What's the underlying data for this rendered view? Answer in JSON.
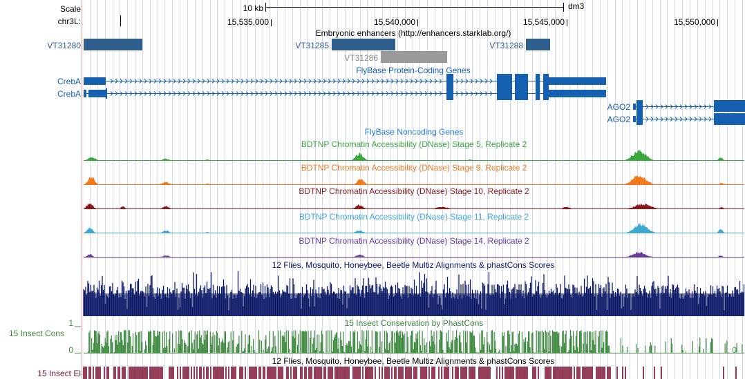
{
  "ruler": {
    "scale_label": "Scale",
    "chrom_label": "chr3L:",
    "scale_text": "10 kb",
    "assembly": "dm3",
    "positions": [
      "15,535,000",
      "15,540,000",
      "15,545,000",
      "15,550,000"
    ]
  },
  "enhancers": {
    "title": "Embryonic enhancers (http://enhancers.starklab.org/)",
    "items": [
      "VT31280",
      "VT31285",
      "VT31286",
      "VT31288"
    ]
  },
  "genes": {
    "title": "FlyBase Protein-Coding Genes",
    "creba_1": "CrebA",
    "creba_2": "CrebA",
    "ago2_1": "AGO2",
    "ago2_2": "AGO2"
  },
  "noncoding": {
    "title": "FlyBase Noncoding Genes"
  },
  "dnase": [
    {
      "title": "BDTNP Chromatin Accessibility (DNase) Stage 5, Replicate 2",
      "color": "#3aa83a"
    },
    {
      "title": "BDTNP Chromatin Accessibility (DNase) Stage 9, Replicate 2",
      "color": "#f07a1c"
    },
    {
      "title": "BDTNP Chromatin Accessibility (DNase) Stage 10, Replicate 2",
      "color": "#8b1a1a"
    },
    {
      "title": "BDTNP Chromatin Accessibility (DNase) Stage 11, Replicate 2",
      "color": "#3fa7d0"
    },
    {
      "title": "BDTNP Chromatin Accessibility (DNase) Stage 14, Replicate 2",
      "color": "#6a3a9a"
    }
  ],
  "multiz": {
    "title": "12 Flies, Mosquito, Honeybee, Beetle Multiz Alignments & phastCons Scores",
    "color": "#0d1a66"
  },
  "phastcons": {
    "title": "15 Insect Conservation by PhastCons",
    "side_label": "15 Insect Cons",
    "tick_max": "1",
    "tick_min": "0",
    "tick_zero_right": "0",
    "color": "#3c8a3c"
  },
  "elements": {
    "title": "12 Flies, Mosquito, Honeybee, Beetle Multiz Alignments & phastCons Scores",
    "side_label": "15 Insect El",
    "color": "#7a1030"
  },
  "colors": {
    "gene": "#1560b0",
    "enhancer": "#2f5f8f",
    "enhancer_gray": "#999999",
    "grid": "#c8c8f0",
    "left_line": "#ff9999"
  }
}
